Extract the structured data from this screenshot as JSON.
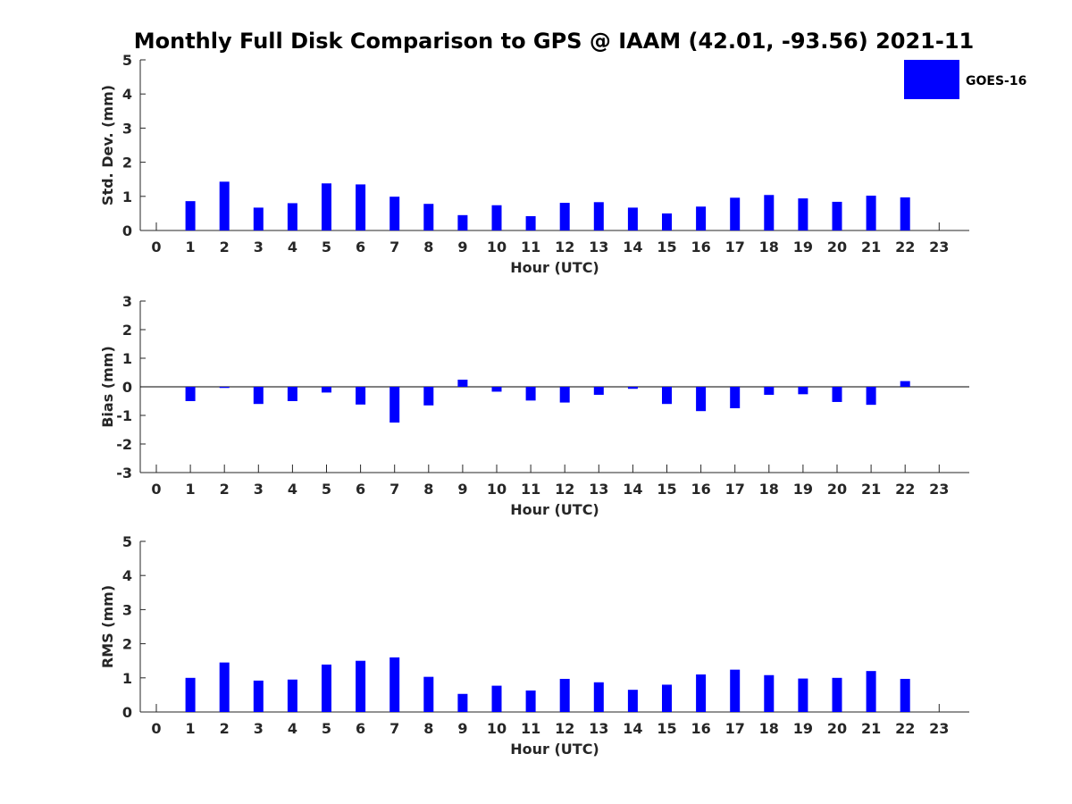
{
  "title": "Monthly Full Disk Comparison to GPS @ IAAM (42.01, -93.56) 2021-11",
  "legend": {
    "label": "GOES-16",
    "color": "#0000ff",
    "position": "top-right"
  },
  "chart_data": [
    {
      "type": "bar",
      "name": "std",
      "xlabel": "Hour (UTC)",
      "ylabel": "Std. Dev. (mm)",
      "ylim": [
        0,
        5
      ],
      "yticks": [
        0,
        1,
        2,
        3,
        4,
        5
      ],
      "categories": [
        "0",
        "1",
        "2",
        "3",
        "4",
        "5",
        "6",
        "7",
        "8",
        "9",
        "10",
        "11",
        "12",
        "13",
        "14",
        "15",
        "16",
        "17",
        "18",
        "19",
        "20",
        "21",
        "22",
        "23"
      ],
      "series": [
        {
          "name": "GOES-16",
          "values": [
            null,
            0.86,
            1.43,
            0.67,
            0.8,
            1.38,
            1.35,
            0.99,
            0.78,
            0.45,
            0.74,
            0.42,
            0.81,
            0.83,
            0.67,
            0.5,
            0.7,
            0.96,
            1.04,
            0.94,
            0.84,
            1.02,
            0.97,
            null
          ]
        }
      ]
    },
    {
      "type": "bar",
      "name": "bias",
      "xlabel": "Hour (UTC)",
      "ylabel": "Bias (mm)",
      "ylim": [
        -3,
        3
      ],
      "yticks": [
        -3,
        -2,
        -1,
        0,
        1,
        2,
        3
      ],
      "categories": [
        "0",
        "1",
        "2",
        "3",
        "4",
        "5",
        "6",
        "7",
        "8",
        "9",
        "10",
        "11",
        "12",
        "13",
        "14",
        "15",
        "16",
        "17",
        "18",
        "19",
        "20",
        "21",
        "22",
        "23"
      ],
      "series": [
        {
          "name": "GOES-16",
          "values": [
            null,
            -0.5,
            -0.04,
            -0.6,
            -0.5,
            -0.2,
            -0.62,
            -1.25,
            -0.65,
            0.25,
            -0.17,
            -0.48,
            -0.55,
            -0.28,
            -0.07,
            -0.6,
            -0.85,
            -0.75,
            -0.28,
            -0.26,
            -0.53,
            -0.63,
            0.2,
            null
          ]
        }
      ]
    },
    {
      "type": "bar",
      "name": "rms",
      "xlabel": "Hour (UTC)",
      "ylabel": "RMS (mm)",
      "ylim": [
        0,
        5
      ],
      "yticks": [
        0,
        1,
        2,
        3,
        4,
        5
      ],
      "categories": [
        "0",
        "1",
        "2",
        "3",
        "4",
        "5",
        "6",
        "7",
        "8",
        "9",
        "10",
        "11",
        "12",
        "13",
        "14",
        "15",
        "16",
        "17",
        "18",
        "19",
        "20",
        "21",
        "22",
        "23"
      ],
      "series": [
        {
          "name": "GOES-16",
          "values": [
            null,
            1.0,
            1.45,
            0.92,
            0.95,
            1.39,
            1.5,
            1.6,
            1.03,
            0.53,
            0.77,
            0.63,
            0.97,
            0.87,
            0.65,
            0.8,
            1.1,
            1.24,
            1.08,
            0.98,
            1.0,
            1.2,
            0.97,
            null
          ]
        }
      ]
    }
  ]
}
